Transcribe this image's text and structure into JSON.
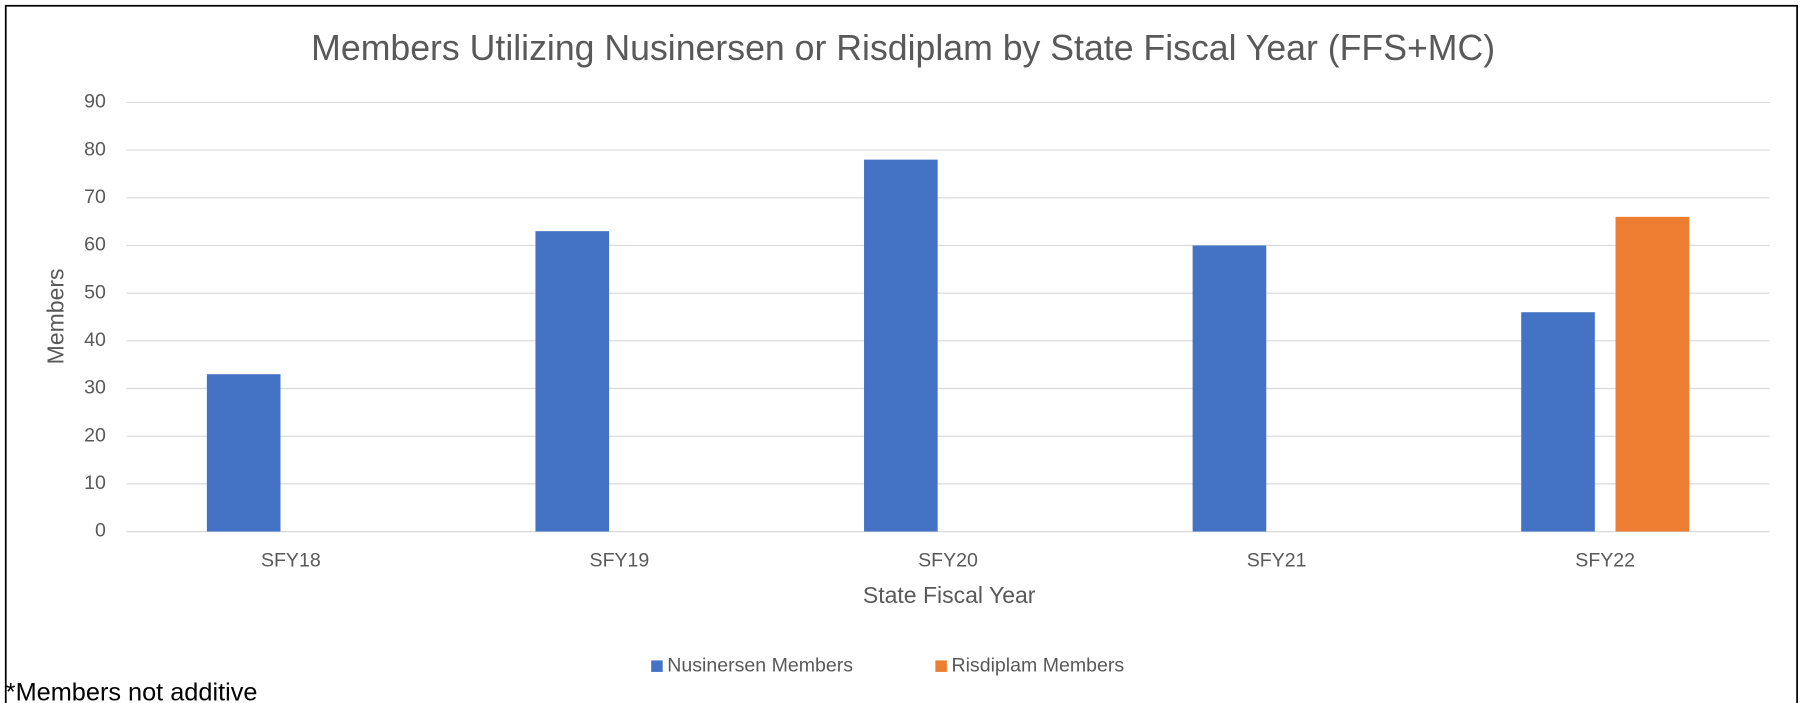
{
  "chart_data": {
    "type": "bar",
    "title": "Members Utilizing Nusinersen or Risdiplam by State Fiscal Year (FFS+MC)",
    "x_label": "State Fiscal Year",
    "y_label": "Members",
    "categories": [
      "SFY18",
      "SFY19",
      "SFY20",
      "SFY21",
      "SFY22"
    ],
    "series": [
      {
        "name": "Nusinersen Members",
        "color": "#4472c4",
        "values": [
          33,
          63,
          78,
          60,
          46
        ]
      },
      {
        "name": "Risdiplam Members",
        "color": "#ed7d31",
        "values": [
          null,
          null,
          null,
          null,
          66
        ]
      }
    ],
    "ylim": [
      0,
      90
    ],
    "yticks": [
      0,
      10,
      20,
      30,
      40,
      50,
      60,
      70,
      80,
      90
    ],
    "grid": true,
    "legend": "bottom"
  },
  "footnote": "*Members not additive"
}
